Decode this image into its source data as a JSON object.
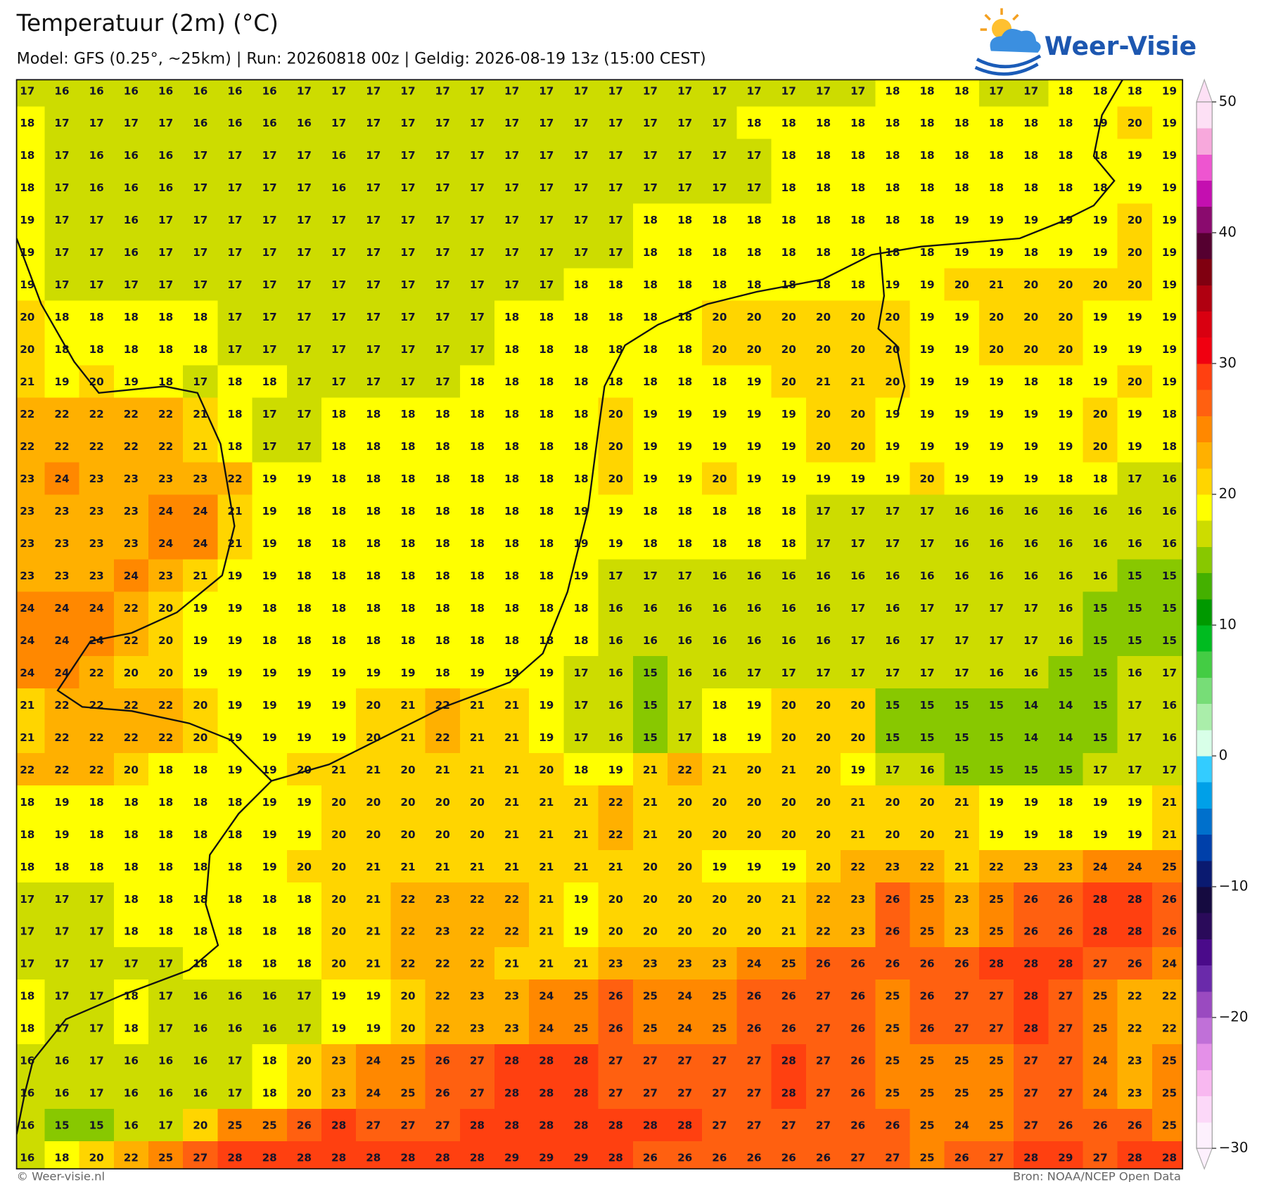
{
  "header": {
    "title": "Temperatuur (2m) (°C)",
    "subtitle": "Model: GFS (0.25°, ~25km)  |  Run: 20260818 00z  |  Geldig: 2026-08-19 13z (15:00 CEST)",
    "logo": "Weer-Visie"
  },
  "map": {
    "type": "grid",
    "values": [
      [
        17,
        16,
        16,
        16,
        16,
        16,
        16,
        16,
        17,
        17,
        17,
        17,
        17,
        17,
        17,
        17,
        17,
        17,
        17,
        17,
        17,
        17,
        17,
        17,
        17,
        18,
        18,
        18,
        17,
        17,
        18,
        18,
        18,
        19
      ],
      [
        18,
        17,
        17,
        17,
        17,
        16,
        16,
        16,
        16,
        17,
        17,
        17,
        17,
        17,
        17,
        17,
        17,
        17,
        17,
        17,
        17,
        18,
        18,
        18,
        18,
        18,
        18,
        18,
        18,
        18,
        18,
        19,
        20,
        19
      ],
      [
        18,
        17,
        16,
        16,
        16,
        17,
        17,
        17,
        17,
        16,
        17,
        17,
        17,
        17,
        17,
        17,
        17,
        17,
        17,
        17,
        17,
        17,
        18,
        18,
        18,
        18,
        18,
        18,
        18,
        18,
        18,
        18,
        19,
        19
      ],
      [
        18,
        17,
        16,
        16,
        16,
        17,
        17,
        17,
        17,
        16,
        17,
        17,
        17,
        17,
        17,
        17,
        17,
        17,
        17,
        17,
        17,
        17,
        18,
        18,
        18,
        18,
        18,
        18,
        18,
        18,
        18,
        18,
        19,
        19
      ],
      [
        19,
        17,
        17,
        16,
        17,
        17,
        17,
        17,
        17,
        17,
        17,
        17,
        17,
        17,
        17,
        17,
        17,
        17,
        18,
        18,
        18,
        18,
        18,
        18,
        18,
        18,
        18,
        19,
        19,
        19,
        19,
        19,
        20,
        19
      ],
      [
        19,
        17,
        17,
        16,
        17,
        17,
        17,
        17,
        17,
        17,
        17,
        17,
        17,
        17,
        17,
        17,
        17,
        17,
        18,
        18,
        18,
        18,
        18,
        18,
        18,
        18,
        18,
        19,
        19,
        18,
        19,
        19,
        20,
        19
      ],
      [
        19,
        17,
        17,
        17,
        17,
        17,
        17,
        17,
        17,
        17,
        17,
        17,
        17,
        17,
        17,
        17,
        18,
        18,
        18,
        18,
        18,
        18,
        18,
        18,
        18,
        19,
        19,
        20,
        21,
        20,
        20,
        20,
        20,
        19
      ],
      [
        20,
        18,
        18,
        18,
        18,
        18,
        17,
        17,
        17,
        17,
        17,
        17,
        17,
        17,
        18,
        18,
        18,
        18,
        18,
        18,
        20,
        20,
        20,
        20,
        20,
        20,
        19,
        19,
        20,
        20,
        20,
        19,
        19,
        19
      ],
      [
        20,
        18,
        18,
        18,
        18,
        18,
        17,
        17,
        17,
        17,
        17,
        17,
        17,
        17,
        18,
        18,
        18,
        18,
        18,
        18,
        20,
        20,
        20,
        20,
        20,
        20,
        19,
        19,
        20,
        20,
        20,
        19,
        19,
        19
      ],
      [
        21,
        19,
        20,
        19,
        18,
        17,
        18,
        18,
        17,
        17,
        17,
        17,
        17,
        18,
        18,
        18,
        18,
        18,
        18,
        18,
        18,
        19,
        20,
        21,
        21,
        20,
        19,
        19,
        19,
        18,
        18,
        19,
        20,
        19
      ],
      [
        22,
        22,
        22,
        22,
        22,
        21,
        18,
        17,
        17,
        18,
        18,
        18,
        18,
        18,
        18,
        18,
        18,
        20,
        19,
        19,
        19,
        19,
        19,
        20,
        20,
        19,
        19,
        19,
        19,
        19,
        19,
        20,
        19,
        18
      ],
      [
        22,
        22,
        22,
        22,
        22,
        21,
        18,
        17,
        17,
        18,
        18,
        18,
        18,
        18,
        18,
        18,
        18,
        20,
        19,
        19,
        19,
        19,
        19,
        20,
        20,
        19,
        19,
        19,
        19,
        19,
        19,
        20,
        19,
        18
      ],
      [
        23,
        24,
        23,
        23,
        23,
        23,
        22,
        19,
        19,
        18,
        18,
        18,
        18,
        18,
        18,
        18,
        18,
        20,
        19,
        19,
        20,
        19,
        19,
        19,
        19,
        19,
        20,
        19,
        19,
        19,
        18,
        18,
        17,
        16
      ],
      [
        23,
        23,
        23,
        23,
        24,
        24,
        21,
        19,
        18,
        18,
        18,
        18,
        18,
        18,
        18,
        18,
        19,
        19,
        18,
        18,
        18,
        18,
        18,
        17,
        17,
        17,
        17,
        16,
        16,
        16,
        16,
        16,
        16,
        16
      ],
      [
        23,
        23,
        23,
        23,
        24,
        24,
        21,
        19,
        18,
        18,
        18,
        18,
        18,
        18,
        18,
        18,
        19,
        19,
        18,
        18,
        18,
        18,
        18,
        17,
        17,
        17,
        17,
        16,
        16,
        16,
        16,
        16,
        16,
        16
      ],
      [
        23,
        23,
        23,
        24,
        23,
        21,
        19,
        19,
        18,
        18,
        18,
        18,
        18,
        18,
        18,
        18,
        19,
        17,
        17,
        17,
        16,
        16,
        16,
        16,
        16,
        16,
        16,
        16,
        16,
        16,
        16,
        16,
        15,
        15
      ],
      [
        24,
        24,
        24,
        22,
        20,
        19,
        19,
        18,
        18,
        18,
        18,
        18,
        18,
        18,
        18,
        18,
        18,
        16,
        16,
        16,
        16,
        16,
        16,
        16,
        17,
        16,
        17,
        17,
        17,
        17,
        16,
        15,
        15,
        15
      ],
      [
        24,
        24,
        24,
        22,
        20,
        19,
        19,
        18,
        18,
        18,
        18,
        18,
        18,
        18,
        18,
        18,
        18,
        16,
        16,
        16,
        16,
        16,
        16,
        16,
        17,
        16,
        17,
        17,
        17,
        17,
        16,
        15,
        15,
        15
      ],
      [
        24,
        24,
        22,
        20,
        20,
        19,
        19,
        19,
        19,
        19,
        19,
        19,
        18,
        19,
        19,
        19,
        17,
        16,
        15,
        16,
        16,
        17,
        17,
        17,
        17,
        17,
        17,
        17,
        16,
        16,
        15,
        15,
        16,
        17
      ],
      [
        21,
        22,
        22,
        22,
        22,
        20,
        19,
        19,
        19,
        19,
        20,
        21,
        22,
        21,
        21,
        19,
        17,
        16,
        15,
        17,
        18,
        19,
        20,
        20,
        20,
        15,
        15,
        15,
        15,
        14,
        14,
        15,
        17,
        16
      ],
      [
        21,
        22,
        22,
        22,
        22,
        20,
        19,
        19,
        19,
        19,
        20,
        21,
        22,
        21,
        21,
        19,
        17,
        16,
        15,
        17,
        18,
        19,
        20,
        20,
        20,
        15,
        15,
        15,
        15,
        14,
        14,
        15,
        17,
        16
      ],
      [
        22,
        22,
        22,
        20,
        18,
        18,
        19,
        19,
        20,
        21,
        21,
        20,
        21,
        21,
        21,
        20,
        18,
        19,
        21,
        22,
        21,
        20,
        21,
        20,
        19,
        17,
        16,
        15,
        15,
        15,
        15,
        17,
        17,
        17
      ],
      [
        18,
        19,
        18,
        18,
        18,
        18,
        18,
        19,
        19,
        20,
        20,
        20,
        20,
        20,
        21,
        21,
        21,
        22,
        21,
        20,
        20,
        20,
        20,
        20,
        21,
        20,
        20,
        21,
        19,
        19,
        18,
        19,
        19,
        21
      ],
      [
        18,
        19,
        18,
        18,
        18,
        18,
        18,
        19,
        19,
        20,
        20,
        20,
        20,
        20,
        21,
        21,
        21,
        22,
        21,
        20,
        20,
        20,
        20,
        20,
        21,
        20,
        20,
        21,
        19,
        19,
        18,
        19,
        19,
        21
      ],
      [
        18,
        18,
        18,
        18,
        18,
        18,
        18,
        19,
        20,
        20,
        21,
        21,
        21,
        21,
        21,
        21,
        21,
        21,
        20,
        20,
        19,
        19,
        19,
        20,
        22,
        23,
        22,
        21,
        22,
        23,
        23,
        24,
        24,
        25
      ],
      [
        17,
        17,
        17,
        18,
        18,
        18,
        18,
        18,
        18,
        20,
        21,
        22,
        23,
        22,
        22,
        21,
        19,
        20,
        20,
        20,
        20,
        20,
        21,
        22,
        23,
        26,
        25,
        23,
        25,
        26,
        26,
        28,
        28,
        26
      ],
      [
        17,
        17,
        17,
        18,
        18,
        18,
        18,
        18,
        18,
        20,
        21,
        22,
        23,
        22,
        22,
        21,
        19,
        20,
        20,
        20,
        20,
        20,
        21,
        22,
        23,
        26,
        25,
        23,
        25,
        26,
        26,
        28,
        28,
        26
      ],
      [
        17,
        17,
        17,
        17,
        17,
        18,
        18,
        18,
        18,
        20,
        21,
        22,
        22,
        22,
        21,
        21,
        21,
        23,
        23,
        23,
        23,
        24,
        25,
        26,
        26,
        26,
        26,
        26,
        28,
        28,
        28,
        27,
        26,
        24
      ],
      [
        18,
        17,
        17,
        18,
        17,
        16,
        16,
        16,
        17,
        19,
        19,
        20,
        22,
        23,
        23,
        24,
        25,
        26,
        25,
        24,
        25,
        26,
        26,
        27,
        26,
        25,
        26,
        27,
        27,
        28,
        27,
        25,
        22,
        22
      ],
      [
        18,
        17,
        17,
        18,
        17,
        16,
        16,
        16,
        17,
        19,
        19,
        20,
        22,
        23,
        23,
        24,
        25,
        26,
        25,
        24,
        25,
        26,
        26,
        27,
        26,
        25,
        26,
        27,
        27,
        28,
        27,
        25,
        22,
        22
      ],
      [
        16,
        16,
        17,
        16,
        16,
        16,
        17,
        18,
        20,
        23,
        24,
        25,
        26,
        27,
        28,
        28,
        28,
        27,
        27,
        27,
        27,
        27,
        28,
        27,
        26,
        25,
        25,
        25,
        25,
        27,
        27,
        24,
        23,
        25
      ],
      [
        16,
        16,
        17,
        16,
        16,
        16,
        17,
        18,
        20,
        23,
        24,
        25,
        26,
        27,
        28,
        28,
        28,
        27,
        27,
        27,
        27,
        27,
        28,
        27,
        26,
        25,
        25,
        25,
        25,
        27,
        27,
        24,
        23,
        25
      ],
      [
        16,
        15,
        15,
        16,
        17,
        20,
        25,
        25,
        26,
        28,
        27,
        27,
        27,
        28,
        28,
        28,
        28,
        28,
        28,
        28,
        27,
        27,
        27,
        27,
        26,
        26,
        25,
        24,
        25,
        27,
        26,
        26,
        26,
        25
      ],
      [
        16,
        18,
        20,
        22,
        25,
        27,
        28,
        28,
        28,
        28,
        28,
        28,
        28,
        28,
        29,
        29,
        29,
        28,
        26,
        26,
        26,
        26,
        26,
        26,
        27,
        27,
        25,
        26,
        27,
        28,
        29,
        27,
        28,
        28
      ]
    ]
  },
  "colorbar": {
    "lim": [
      -30,
      50
    ],
    "colors": [
      "#fdf0fd",
      "#fcd8f8",
      "#f8b8f0",
      "#e490e8",
      "#c070d8",
      "#9a4ac0",
      "#6a2aaa",
      "#4a0a8a",
      "#2a0a5a",
      "#150a40",
      "#0a1a70",
      "#0040aa",
      "#0070cc",
      "#00a0e8",
      "#33ccff",
      "#d8ffe8",
      "#aaeeaa",
      "#77dd77",
      "#44cc44",
      "#00bb20",
      "#009900",
      "#44b000",
      "#88c800",
      "#cddc00",
      "#ffff00",
      "#ffd500",
      "#ffb000",
      "#ff8800",
      "#ff6010",
      "#ff4010",
      "#f00010",
      "#d90010",
      "#b00010",
      "#800010",
      "#550030",
      "#8a0a6e",
      "#c40fb0",
      "#ee55d0",
      "#f7a8dc",
      "#fde0f5"
    ],
    "ticks": [
      {
        "value": -30,
        "label": "−30"
      },
      {
        "value": -20,
        "label": "−20"
      },
      {
        "value": -10,
        "label": "−10"
      },
      0,
      10,
      20,
      30,
      40,
      50
    ]
  },
  "footer": {
    "left": "© Weer-visie.nl",
    "right": "Bron: NOAA/NCEP Open Data"
  }
}
